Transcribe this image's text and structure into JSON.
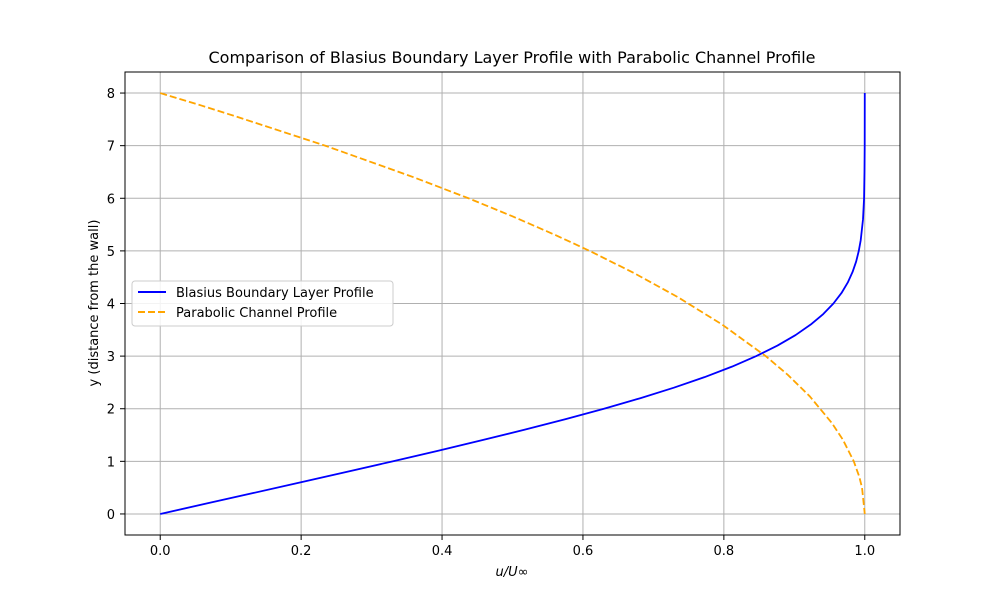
{
  "chart_data": {
    "type": "line",
    "title": "Comparison of Blasius Boundary Layer Profile with Parabolic Channel Profile",
    "xlabel": "u/U∞",
    "ylabel": "y (distance from the wall)",
    "xlim": [
      -0.05,
      1.05
    ],
    "ylim": [
      -0.4,
      8.4
    ],
    "xticks": [
      0.0,
      0.2,
      0.4,
      0.6,
      0.8,
      1.0
    ],
    "xtick_labels": [
      "0.0",
      "0.2",
      "0.4",
      "0.6",
      "0.8",
      "1.0"
    ],
    "yticks": [
      0,
      1,
      2,
      3,
      4,
      5,
      6,
      7,
      8
    ],
    "ytick_labels": [
      "0",
      "1",
      "2",
      "3",
      "4",
      "5",
      "6",
      "7",
      "8"
    ],
    "grid": true,
    "legend": "center-left",
    "series": [
      {
        "name": "Blasius Boundary Layer Profile",
        "color": "#0000ff",
        "style": "solid",
        "x": [
          0.0,
          0.0664,
          0.1328,
          0.199,
          0.2647,
          0.3298,
          0.3938,
          0.4563,
          0.5168,
          0.5748,
          0.6298,
          0.6813,
          0.729,
          0.7725,
          0.8115,
          0.846,
          0.8761,
          0.9018,
          0.9233,
          0.9411,
          0.9555,
          0.967,
          0.9759,
          0.9827,
          0.9878,
          0.9915,
          0.9942,
          0.9975,
          0.999,
          0.9996,
          0.9999,
          1.0
        ],
        "y": [
          0.0,
          0.2,
          0.4,
          0.6,
          0.8,
          1.0,
          1.2,
          1.4,
          1.6,
          1.8,
          2.0,
          2.2,
          2.4,
          2.6,
          2.8,
          3.0,
          3.2,
          3.4,
          3.6,
          3.8,
          4.0,
          4.2,
          4.4,
          4.6,
          4.8,
          5.0,
          5.2,
          5.6,
          6.0,
          6.5,
          7.0,
          8.0
        ]
      },
      {
        "name": "Parabolic Channel Profile",
        "color": "#ffa500",
        "style": "dashed",
        "x": [
          0.0,
          0.0586,
          0.1094,
          0.2344,
          0.3594,
          0.4375,
          0.5,
          0.5625,
          0.6094,
          0.6719,
          0.7344,
          0.7969,
          0.8594,
          0.8906,
          0.9219,
          0.9531,
          0.9688,
          0.9844,
          0.9922,
          0.9961,
          1.0
        ],
        "y": [
          8.0,
          7.7619,
          7.5466,
          6.9986,
          6.4011,
          6.0,
          5.6569,
          5.2915,
          5.0,
          4.5826,
          4.1231,
          3.6056,
          3.0,
          2.6458,
          2.2361,
          1.7321,
          1.4142,
          1.0,
          0.7071,
          0.5,
          0.0
        ]
      }
    ]
  }
}
